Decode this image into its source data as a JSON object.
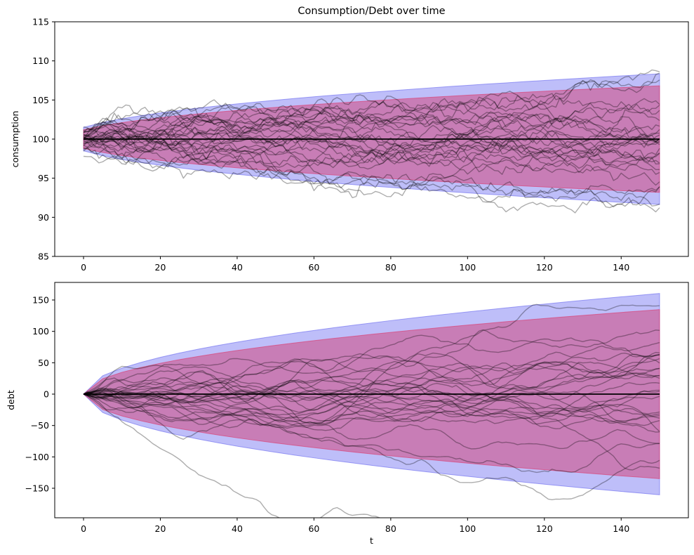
{
  "figure": {
    "title": "Consumption/Debt over time",
    "background": "#ffffff"
  },
  "chart_data": {
    "type": "line",
    "title": "Consumption/Debt over time",
    "legend": "none",
    "grid": false,
    "x_range": [
      0,
      150
    ],
    "n_points_per_path": 151,
    "colors": {
      "outer_band_fill": "rgba(40,40,235,0.30)",
      "outer_band_edge": "rgba(110,110,240,0.65)",
      "inner_band_fill": "rgba(215,35,90,0.42)",
      "inner_band_edge": "rgba(220,60,110,0.65)",
      "mean_line": "#000000",
      "sample_path": "rgba(0,0,0,0.32)",
      "axes": "#000000"
    },
    "t": [
      0,
      5,
      10,
      15,
      20,
      25,
      30,
      35,
      40,
      45,
      50,
      55,
      60,
      65,
      70,
      75,
      80,
      85,
      90,
      95,
      100,
      105,
      110,
      115,
      120,
      125,
      130,
      135,
      140,
      145,
      150
    ],
    "subplots": [
      {
        "name": "consumption",
        "ylabel": "consumption",
        "xlabel": "",
        "xlim": [
          -7.5,
          157.5
        ],
        "ylim": [
          85,
          115
        ],
        "xticks": [
          0,
          20,
          40,
          60,
          80,
          100,
          120,
          140
        ],
        "xtick_labels": [
          "0",
          "20",
          "40",
          "60",
          "80",
          "100",
          "120",
          "140"
        ],
        "yticks": [
          85,
          90,
          95,
          100,
          105,
          110,
          115
        ],
        "ytick_labels": [
          "85",
          "90",
          "95",
          "100",
          "105",
          "110",
          "115"
        ],
        "mean_value": 100,
        "outer_band_half_width": [
          1.5,
          2.12,
          2.6,
          3.0,
          3.35,
          3.67,
          3.97,
          4.24,
          4.5,
          4.74,
          4.97,
          5.2,
          5.41,
          5.61,
          5.81,
          6.0,
          6.18,
          6.36,
          6.54,
          6.71,
          6.87,
          7.04,
          7.19,
          7.35,
          7.5,
          7.65,
          7.79,
          7.94,
          8.08,
          8.22,
          8.35
        ],
        "inner_band_half_width": [
          1.2,
          1.71,
          2.11,
          2.44,
          2.73,
          2.99,
          3.23,
          3.46,
          3.67,
          3.87,
          4.05,
          4.24,
          4.41,
          4.58,
          4.74,
          4.89,
          5.04,
          5.19,
          5.33,
          5.47,
          5.61,
          5.74,
          5.87,
          5.99,
          6.12,
          6.24,
          6.36,
          6.48,
          6.59,
          6.7,
          6.81
        ],
        "sample_paths": {
          "count": 30,
          "start_mean": 100,
          "start_sd": 0.85,
          "step_sd": 0.36,
          "rho": 0.0,
          "seed": 20240
        }
      },
      {
        "name": "debt",
        "ylabel": "debt",
        "xlabel": "t",
        "xlim": [
          -7.5,
          157.5
        ],
        "ylim": [
          -197,
          178
        ],
        "xticks": [
          0,
          20,
          40,
          60,
          80,
          100,
          120,
          140
        ],
        "xtick_labels": [
          "0",
          "20",
          "40",
          "60",
          "80",
          "100",
          "120",
          "140"
        ],
        "yticks": [
          -150,
          -100,
          -50,
          0,
          50,
          100,
          150
        ],
        "ytick_labels": [
          "−150",
          "−100",
          "−50",
          "0",
          "50",
          "100",
          "150"
        ],
        "mean_value": 0,
        "outer_band_half_width": [
          0,
          29.3,
          41.4,
          50.7,
          58.6,
          65.5,
          71.8,
          77.5,
          82.9,
          87.9,
          92.6,
          97.2,
          101.5,
          105.6,
          109.6,
          113.4,
          117.2,
          120.8,
          124.3,
          127.7,
          131.0,
          134.2,
          137.4,
          140.5,
          143.5,
          146.5,
          149.4,
          152.2,
          155.0,
          157.7,
          160.4
        ],
        "inner_band_half_width": [
          0,
          24.6,
          34.8,
          42.6,
          49.2,
          55.0,
          60.2,
          65.1,
          69.6,
          73.8,
          77.8,
          81.6,
          85.2,
          88.7,
          92.0,
          95.3,
          98.4,
          101.4,
          104.3,
          107.2,
          110.0,
          112.7,
          115.4,
          118.0,
          120.5,
          123.0,
          125.4,
          127.8,
          130.2,
          132.4,
          134.7
        ],
        "sample_paths": {
          "count": 30,
          "start_mean": 0,
          "start_sd": 0.0,
          "step_sd": 2.3,
          "rho": 0.72,
          "seed": 911
        }
      }
    ]
  }
}
